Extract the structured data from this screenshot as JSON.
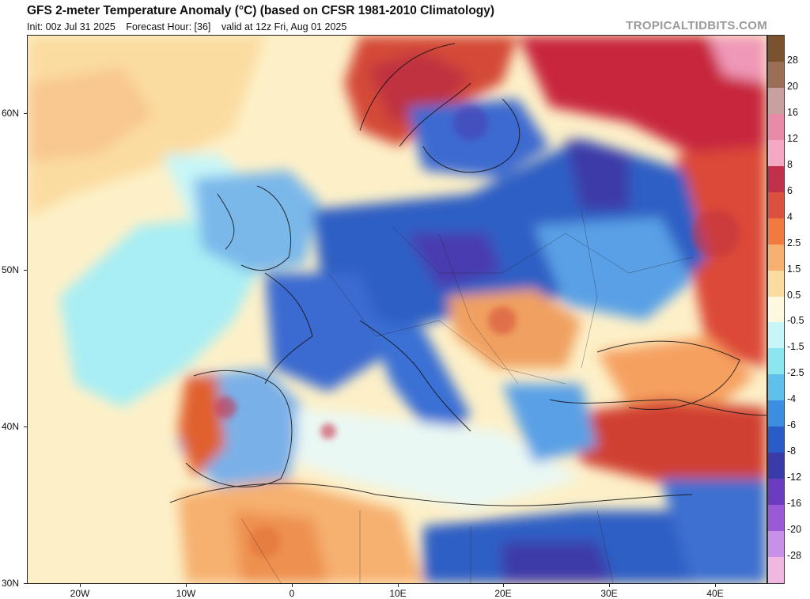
{
  "header": {
    "title": "GFS 2-meter Temperature Anomaly (°C) (based on CFSR 1981-2010 Climatology)",
    "init": "Init: 00z Jul 31 2025",
    "forecast_hour": "Forecast Hour: [36]",
    "valid": "valid at 12z Fri, Aug 01 2025",
    "brand": "TROPICALTIDBITS.COM"
  },
  "map": {
    "lat_labels": [
      "60N",
      "50N",
      "40N",
      "30N"
    ],
    "lon_labels": [
      "20W",
      "10W",
      "0",
      "10E",
      "20E",
      "30E",
      "40E"
    ]
  },
  "colorbar": {
    "labels": [
      "28",
      "20",
      "16",
      "12",
      "8",
      "6",
      "4",
      "2.5",
      "1.5",
      "0.5",
      "-0.5",
      "-1.5",
      "-2.5",
      "-4",
      "-6",
      "-8",
      "-12",
      "-16",
      "-20",
      "-28"
    ],
    "colors": [
      "#7a5230",
      "#9b6f55",
      "#c8a0a0",
      "#e88aa8",
      "#f4a8c4",
      "#c0304a",
      "#dc5040",
      "#f07a40",
      "#f6b070",
      "#fbdca0",
      "#fff8e0",
      "#c8f6f8",
      "#8ce6f0",
      "#60c0ec",
      "#3c8ee0",
      "#2a5cc8",
      "#3a3aa8",
      "#6a3cc0",
      "#9a5ad8",
      "#c890e8",
      "#f0b8e0"
    ]
  },
  "regions": {
    "cold": "#2f5fc4",
    "deep_cold": "#4a3ab0",
    "cool": "#5aa0e6",
    "pale_cool": "#a8eef4",
    "warm": "#f6b46e",
    "hot": "#e0552e",
    "very_hot": "#c02a3c",
    "neutral": "#fdf0c8"
  }
}
